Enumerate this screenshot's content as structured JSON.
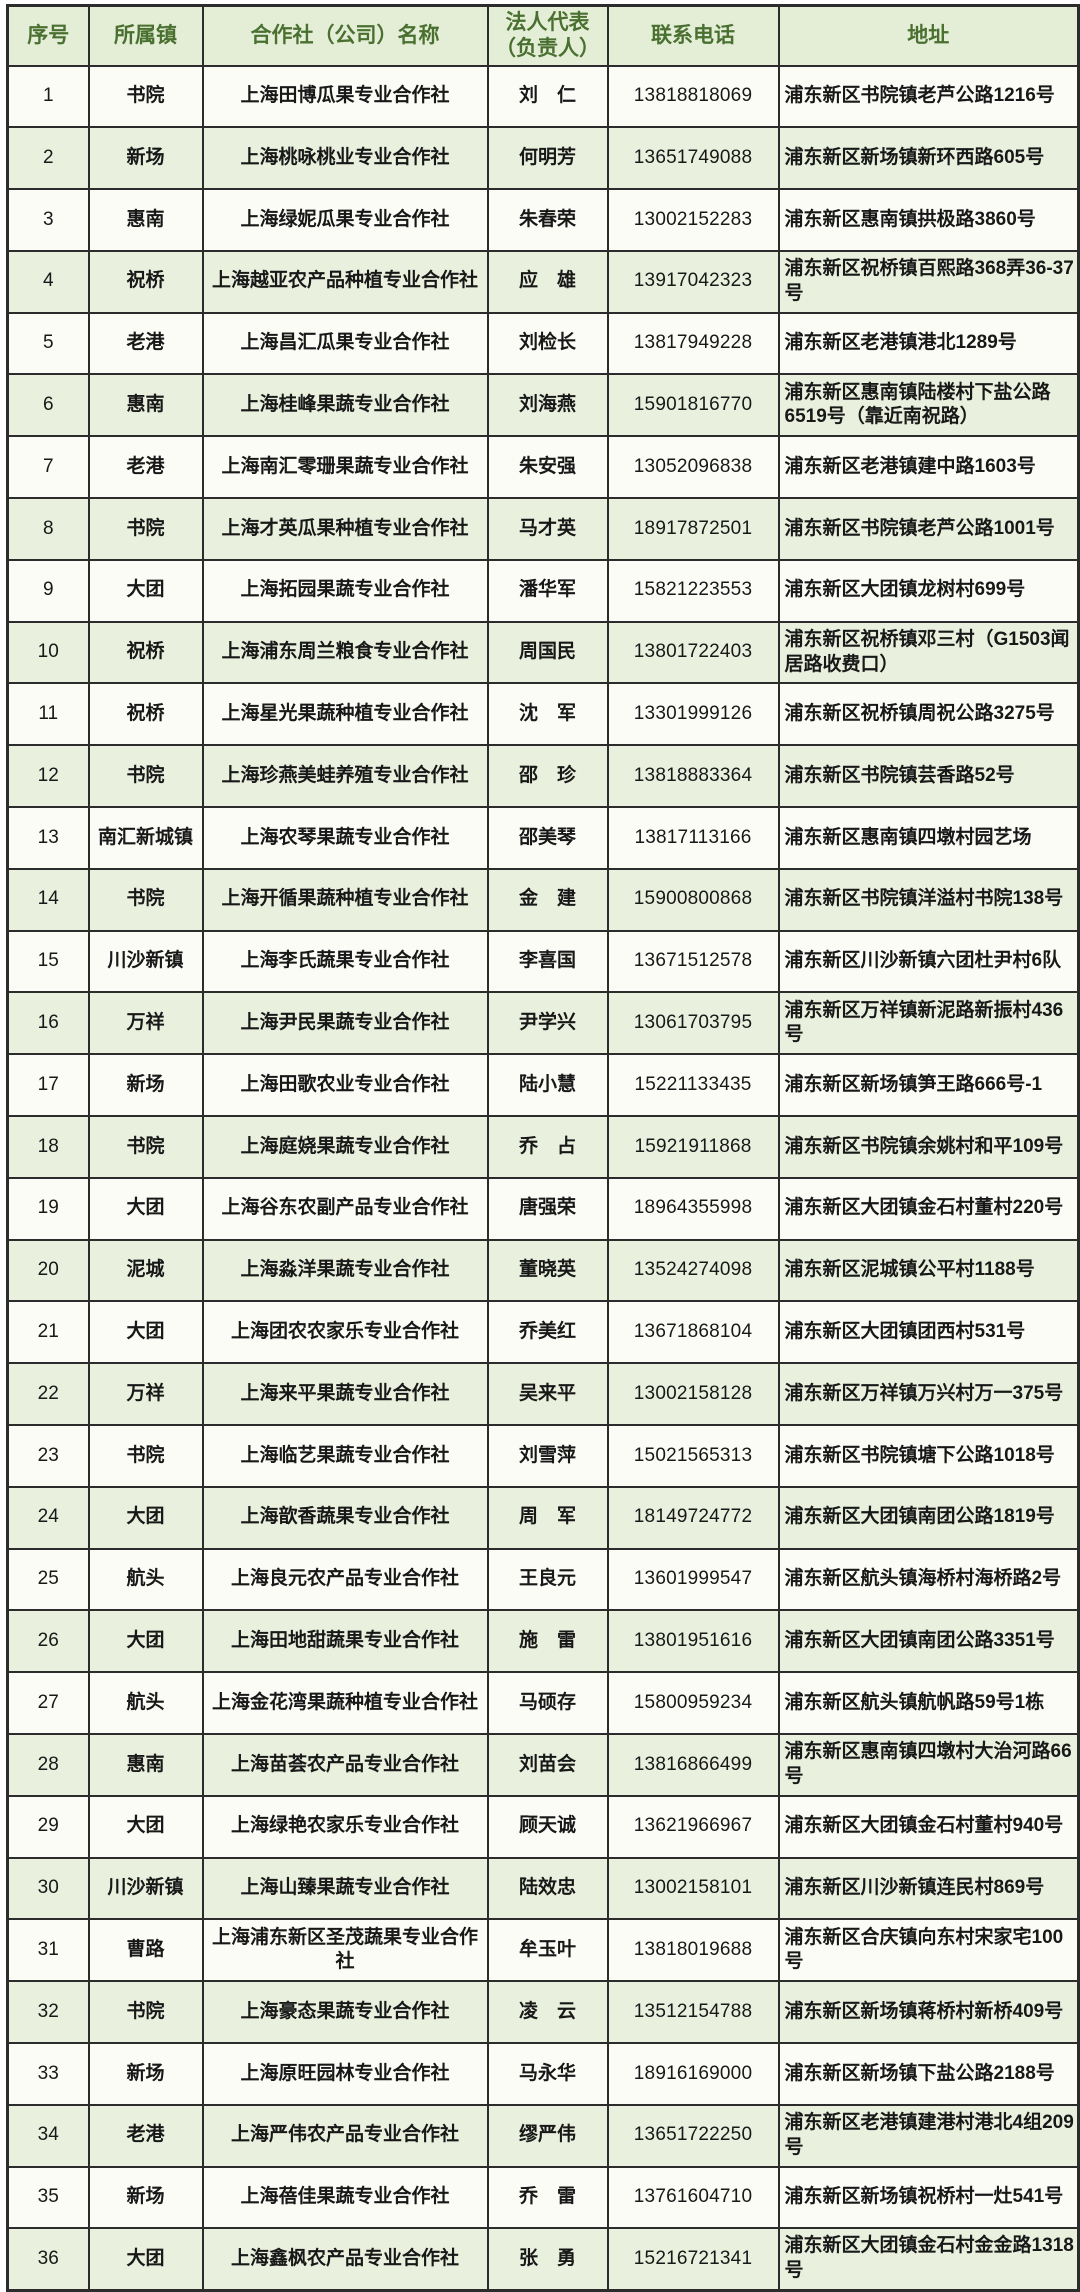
{
  "table": {
    "columns": [
      {
        "key": "no",
        "label": "序号"
      },
      {
        "key": "town",
        "label": "所属镇"
      },
      {
        "key": "name",
        "label": "合作社（公司）名称"
      },
      {
        "key": "rep",
        "label": "法人代表\n（负责人）"
      },
      {
        "key": "phone",
        "label": "联系电话"
      },
      {
        "key": "address",
        "label": "地址"
      }
    ],
    "colors": {
      "header_bg": "#e4eed6",
      "header_text": "#4a7031",
      "row_odd_bg": "#fbfcf6",
      "row_even_bg": "#e9f0de",
      "border": "#2c2c2c",
      "body_text": "#181818"
    },
    "rows": [
      {
        "no": "1",
        "town": "书院",
        "name": "上海田博瓜果专业合作社",
        "rep": "刘　仁",
        "phone": "13818818069",
        "address": "浦东新区书院镇老芦公路1216号"
      },
      {
        "no": "2",
        "town": "新场",
        "name": "上海桃咏桃业专业合作社",
        "rep": "何明芳",
        "phone": "13651749088",
        "address": "浦东新区新场镇新环西路605号"
      },
      {
        "no": "3",
        "town": "惠南",
        "name": "上海绿妮瓜果专业合作社",
        "rep": "朱春荣",
        "phone": "13002152283",
        "address": "浦东新区惠南镇拱极路3860号"
      },
      {
        "no": "4",
        "town": "祝桥",
        "name": "上海越亚农产品种植专业合作社",
        "rep": "应　雄",
        "phone": "13917042323",
        "address": "浦东新区祝桥镇百熙路368弄36-37号"
      },
      {
        "no": "5",
        "town": "老港",
        "name": "上海昌汇瓜果专业合作社",
        "rep": "刘检长",
        "phone": "13817949228",
        "address": "浦东新区老港镇港北1289号"
      },
      {
        "no": "6",
        "town": "惠南",
        "name": "上海桂峰果蔬专业合作社",
        "rep": "刘海燕",
        "phone": "15901816770",
        "address": "浦东新区惠南镇陆楼村下盐公路6519号（靠近南祝路）"
      },
      {
        "no": "7",
        "town": "老港",
        "name": "上海南汇零珊果蔬专业合作社",
        "rep": "朱安强",
        "phone": "13052096838",
        "address": "浦东新区老港镇建中路1603号"
      },
      {
        "no": "8",
        "town": "书院",
        "name": "上海才英瓜果种植专业合作社",
        "rep": "马才英",
        "phone": "18917872501",
        "address": "浦东新区书院镇老芦公路1001号"
      },
      {
        "no": "9",
        "town": "大团",
        "name": "上海拓园果蔬专业合作社",
        "rep": "潘华军",
        "phone": "15821223553",
        "address": "浦东新区大团镇龙树村699号"
      },
      {
        "no": "10",
        "town": "祝桥",
        "name": "上海浦东周兰粮食专业合作社",
        "rep": "周国民",
        "phone": "13801722403",
        "address": "浦东新区祝桥镇邓三村（G1503闻居路收费口）"
      },
      {
        "no": "11",
        "town": "祝桥",
        "name": "上海星光果蔬种植专业合作社",
        "rep": "沈　军",
        "phone": "13301999126",
        "address": "浦东新区祝桥镇周祝公路3275号"
      },
      {
        "no": "12",
        "town": "书院",
        "name": "上海珍燕美蛙养殖专业合作社",
        "rep": "邵　珍",
        "phone": "13818883364",
        "address": "浦东新区书院镇芸香路52号"
      },
      {
        "no": "13",
        "town": "南汇新城镇",
        "name": "上海农琴果蔬专业合作社",
        "rep": "邵美琴",
        "phone": "13817113166",
        "address": "浦东新区惠南镇四墩村园艺场"
      },
      {
        "no": "14",
        "town": "书院",
        "name": "上海开循果蔬种植专业合作社",
        "rep": "金　建",
        "phone": "15900800868",
        "address": "浦东新区书院镇洋溢村书院138号"
      },
      {
        "no": "15",
        "town": "川沙新镇",
        "name": "上海李氏蔬果专业合作社",
        "rep": "李喜国",
        "phone": "13671512578",
        "address": "浦东新区川沙新镇六团杜尹村6队"
      },
      {
        "no": "16",
        "town": "万祥",
        "name": "上海尹民果蔬专业合作社",
        "rep": "尹学兴",
        "phone": "13061703795",
        "address": "浦东新区万祥镇新泥路新振村436号"
      },
      {
        "no": "17",
        "town": "新场",
        "name": "上海田歌农业专业合作社",
        "rep": "陆小慧",
        "phone": "15221133435",
        "address": "浦东新区新场镇笋王路666号-1"
      },
      {
        "no": "18",
        "town": "书院",
        "name": "上海庭娆果蔬专业合作社",
        "rep": "乔　占",
        "phone": "15921911868",
        "address": "浦东新区书院镇余姚村和平109号"
      },
      {
        "no": "19",
        "town": "大团",
        "name": "上海谷东农副产品专业合作社",
        "rep": "唐强荣",
        "phone": "18964355998",
        "address": "浦东新区大团镇金石村董村220号"
      },
      {
        "no": "20",
        "town": "泥城",
        "name": "上海淼洋果蔬专业合作社",
        "rep": "董晓英",
        "phone": "13524274098",
        "address": "浦东新区泥城镇公平村1188号"
      },
      {
        "no": "21",
        "town": "大团",
        "name": "上海团农农家乐专业合作社",
        "rep": "乔美红",
        "phone": "13671868104",
        "address": "浦东新区大团镇团西村531号"
      },
      {
        "no": "22",
        "town": "万祥",
        "name": "上海来平果蔬专业合作社",
        "rep": "吴来平",
        "phone": "13002158128",
        "address": "浦东新区万祥镇万兴村万一375号"
      },
      {
        "no": "23",
        "town": "书院",
        "name": "上海临艺果蔬专业合作社",
        "rep": "刘雪萍",
        "phone": "15021565313",
        "address": "浦东新区书院镇塘下公路1018号"
      },
      {
        "no": "24",
        "town": "大团",
        "name": "上海歆香蔬果专业合作社",
        "rep": "周　军",
        "phone": "18149724772",
        "address": "浦东新区大团镇南团公路1819号"
      },
      {
        "no": "25",
        "town": "航头",
        "name": "上海良元农产品专业合作社",
        "rep": "王良元",
        "phone": "13601999547",
        "address": "浦东新区航头镇海桥村海桥路2号"
      },
      {
        "no": "26",
        "town": "大团",
        "name": "上海田地甜蔬果专业合作社",
        "rep": "施　雷",
        "phone": "13801951616",
        "address": "浦东新区大团镇南团公路3351号"
      },
      {
        "no": "27",
        "town": "航头",
        "name": "上海金花湾果蔬种植专业合作社",
        "rep": "马硕存",
        "phone": "15800959234",
        "address": "浦东新区航头镇航帆路59号1栋"
      },
      {
        "no": "28",
        "town": "惠南",
        "name": "上海苗荟农产品专业合作社",
        "rep": "刘苗会",
        "phone": "13816866499",
        "address": "浦东新区惠南镇四墩村大治河路66号"
      },
      {
        "no": "29",
        "town": "大团",
        "name": "上海绿艳农家乐专业合作社",
        "rep": "顾天诚",
        "phone": "13621966967",
        "address": "浦东新区大团镇金石村董村940号"
      },
      {
        "no": "30",
        "town": "川沙新镇",
        "name": "上海山臻果蔬专业合作社",
        "rep": "陆效忠",
        "phone": "13002158101",
        "address": "浦东新区川沙新镇连民村869号"
      },
      {
        "no": "31",
        "town": "曹路",
        "name": "上海浦东新区圣茂蔬果专业合作社",
        "rep": "牟玉叶",
        "phone": "13818019688",
        "address": "浦东新区合庆镇向东村宋家宅100号"
      },
      {
        "no": "32",
        "town": "书院",
        "name": "上海豪态果蔬专业合作社",
        "rep": "凌　云",
        "phone": "13512154788",
        "address": "浦东新区新场镇蒋桥村新桥409号"
      },
      {
        "no": "33",
        "town": "新场",
        "name": "上海原旺园林专业合作社",
        "rep": "马永华",
        "phone": "18916169000",
        "address": "浦东新区新场镇下盐公路2188号"
      },
      {
        "no": "34",
        "town": "老港",
        "name": "上海严伟农产品专业合作社",
        "rep": "缪严伟",
        "phone": "13651722250",
        "address": "浦东新区老港镇建港村港北4组209号"
      },
      {
        "no": "35",
        "town": "新场",
        "name": "上海蓓佳果蔬专业合作社",
        "rep": "乔　雷",
        "phone": "13761604710",
        "address": "浦东新区新场镇祝桥村一灶541号"
      },
      {
        "no": "36",
        "town": "大团",
        "name": "上海鑫枫农产品专业合作社",
        "rep": "张　勇",
        "phone": "15216721341",
        "address": "浦东新区大团镇金石村金金路1318号"
      }
    ]
  }
}
